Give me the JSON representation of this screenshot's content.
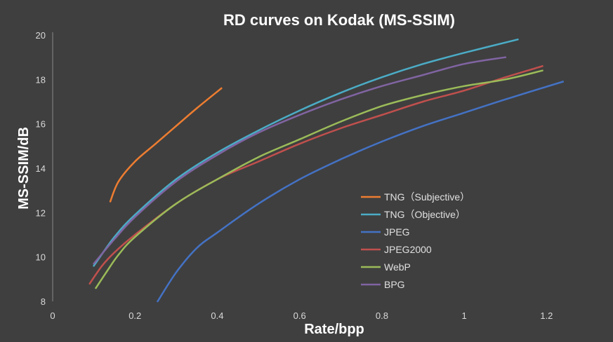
{
  "chart_data": {
    "type": "line",
    "title": "RD curves on Kodak (MS-SSIM)",
    "xlabel": "Rate/bpp",
    "ylabel": "MS-SSIM/dB",
    "xlim": [
      0,
      1.3
    ],
    "ylim": [
      8,
      20
    ],
    "x_ticks": [
      0,
      0.2,
      0.4,
      0.6,
      0.8,
      1,
      1.2
    ],
    "x_tick_labels": [
      "0",
      "0.2",
      "0.4",
      "0.6",
      "0.8",
      "1",
      "1.2"
    ],
    "y_ticks": [
      8,
      10,
      12,
      14,
      16,
      18,
      20
    ],
    "y_tick_labels": [
      "8",
      "10",
      "12",
      "14",
      "16",
      "18",
      "20"
    ],
    "grid": false,
    "legend_position": "lower-right",
    "series": [
      {
        "name": "TNG（Subjective）",
        "color": "#ed7d31",
        "x": [
          0.14,
          0.16,
          0.2,
          0.25,
          0.3,
          0.35,
          0.41
        ],
        "y": [
          12.5,
          13.4,
          14.3,
          15.1,
          15.9,
          16.7,
          17.6
        ]
      },
      {
        "name": "TNG（Objective）",
        "color": "#4bacc6",
        "x": [
          0.1,
          0.15,
          0.2,
          0.3,
          0.4,
          0.5,
          0.6,
          0.7,
          0.8,
          0.9,
          1.0,
          1.13
        ],
        "y": [
          9.6,
          10.9,
          11.9,
          13.5,
          14.7,
          15.7,
          16.6,
          17.4,
          18.1,
          18.7,
          19.2,
          19.8
        ]
      },
      {
        "name": "JPEG",
        "color": "#4472c4",
        "x": [
          0.255,
          0.3,
          0.35,
          0.4,
          0.5,
          0.6,
          0.7,
          0.8,
          0.9,
          1.0,
          1.1,
          1.24
        ],
        "y": [
          8.0,
          9.3,
          10.4,
          11.1,
          12.4,
          13.5,
          14.4,
          15.2,
          15.9,
          16.5,
          17.1,
          17.9
        ]
      },
      {
        "name": "JPEG2000",
        "color": "#c0504d",
        "x": [
          0.09,
          0.12,
          0.15,
          0.2,
          0.3,
          0.4,
          0.5,
          0.6,
          0.7,
          0.8,
          0.9,
          1.0,
          1.1,
          1.19
        ],
        "y": [
          8.8,
          9.6,
          10.2,
          11.0,
          12.4,
          13.5,
          14.3,
          15.1,
          15.8,
          16.4,
          17.0,
          17.5,
          18.1,
          18.6
        ]
      },
      {
        "name": "WebP",
        "color": "#9bbb59",
        "x": [
          0.105,
          0.13,
          0.16,
          0.2,
          0.3,
          0.4,
          0.5,
          0.6,
          0.7,
          0.8,
          0.9,
          1.0,
          1.1,
          1.19
        ],
        "y": [
          8.6,
          9.3,
          10.1,
          10.9,
          12.4,
          13.5,
          14.5,
          15.3,
          16.1,
          16.8,
          17.3,
          17.7,
          18.0,
          18.4
        ]
      },
      {
        "name": "BPG",
        "color": "#8064a2",
        "x": [
          0.1,
          0.15,
          0.2,
          0.3,
          0.4,
          0.5,
          0.6,
          0.7,
          0.8,
          0.9,
          1.0,
          1.1
        ],
        "y": [
          9.7,
          10.8,
          11.8,
          13.4,
          14.6,
          15.6,
          16.4,
          17.1,
          17.7,
          18.2,
          18.7,
          19.0
        ]
      }
    ]
  }
}
